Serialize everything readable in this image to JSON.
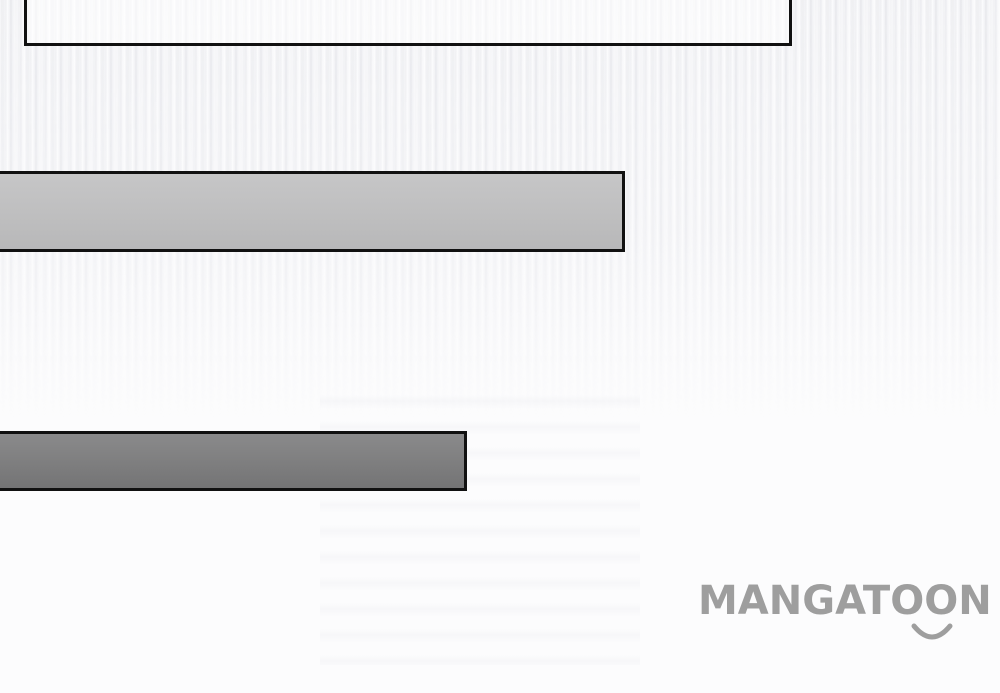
{
  "panel": {
    "caption_boxes": [
      {
        "kind": "white-caption",
        "text": ""
      },
      {
        "kind": "light-gray-caption",
        "text": ""
      },
      {
        "kind": "dark-gray-caption",
        "text": ""
      }
    ]
  },
  "watermark": {
    "text": "MANGATOON",
    "color": "#9e9e9e",
    "icon": "smile-icon"
  },
  "colors": {
    "background": "#fcfcfd",
    "border": "#111111",
    "light_gray_fill": "#bfbfc0",
    "dark_gray_fill": "#7f7f80"
  }
}
